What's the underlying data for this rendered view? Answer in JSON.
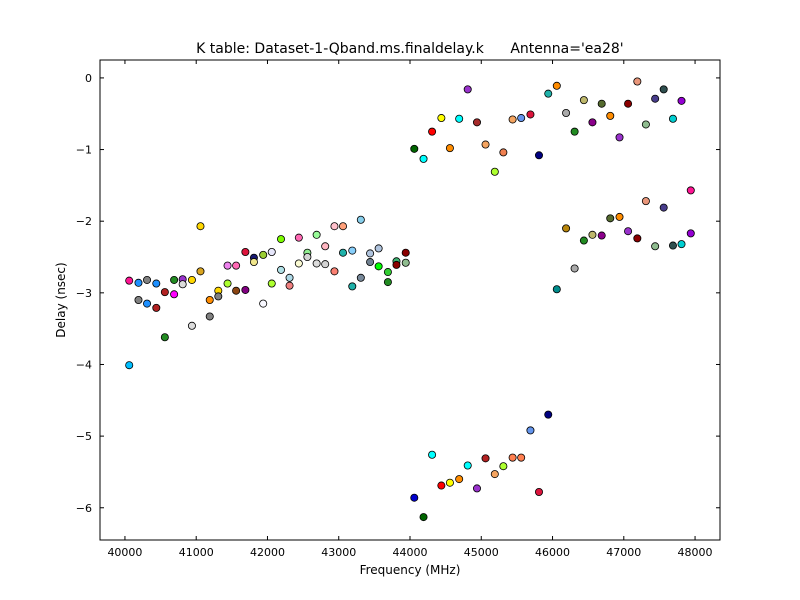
{
  "chart_data": {
    "type": "scatter",
    "title": "K table: Dataset-1-Qband.ms.finaldelay.k",
    "subtitle": "Antenna='ea28'",
    "xlabel": "Frequency (MHz)",
    "ylabel": "Delay (nsec)",
    "xlim": [
      39650,
      48350
    ],
    "ylim": [
      -6.45,
      0.25
    ],
    "xticks": [
      40000,
      41000,
      42000,
      43000,
      44000,
      45000,
      46000,
      47000,
      48000
    ],
    "yticks": [
      0,
      -1,
      -2,
      -3,
      -4,
      -5,
      -6
    ],
    "xtick_labels": [
      "40000",
      "41000",
      "42000",
      "43000",
      "44000",
      "45000",
      "46000",
      "47000",
      "48000"
    ],
    "ytick_labels": [
      "0",
      "−1",
      "−2",
      "−3",
      "−4",
      "−5",
      "−6"
    ],
    "grid": false,
    "legend": "none",
    "points": [
      {
        "x": 40060,
        "y": -2.83,
        "color": "#ff1493"
      },
      {
        "x": 40060,
        "y": -4.01,
        "color": "#00bfff"
      },
      {
        "x": 40190,
        "y": -2.86,
        "color": "#1e90ff"
      },
      {
        "x": 40190,
        "y": -3.1,
        "color": "#808080"
      },
      {
        "x": 40310,
        "y": -2.82,
        "color": "#808080"
      },
      {
        "x": 40310,
        "y": -3.15,
        "color": "#1e90ff"
      },
      {
        "x": 40440,
        "y": -2.87,
        "color": "#1e90ff"
      },
      {
        "x": 40440,
        "y": -3.21,
        "color": "#b22222"
      },
      {
        "x": 40560,
        "y": -2.99,
        "color": "#b22222"
      },
      {
        "x": 40560,
        "y": -3.62,
        "color": "#228b22"
      },
      {
        "x": 40690,
        "y": -2.82,
        "color": "#228b22"
      },
      {
        "x": 40690,
        "y": -3.02,
        "color": "#ff00ff"
      },
      {
        "x": 40810,
        "y": -2.81,
        "color": "#9932cc"
      },
      {
        "x": 40810,
        "y": -2.88,
        "color": "#dcdcdc"
      },
      {
        "x": 40940,
        "y": -2.82,
        "color": "#ffd700"
      },
      {
        "x": 40940,
        "y": -3.46,
        "color": "#dcdcdc"
      },
      {
        "x": 41060,
        "y": -2.07,
        "color": "#ffd700"
      },
      {
        "x": 41060,
        "y": -2.7,
        "color": "#daa520"
      },
      {
        "x": 41190,
        "y": -3.1,
        "color": "#ff8c00"
      },
      {
        "x": 41190,
        "y": -3.33,
        "color": "#808080"
      },
      {
        "x": 41310,
        "y": -2.97,
        "color": "#ffd700"
      },
      {
        "x": 41310,
        "y": -3.05,
        "color": "#808080"
      },
      {
        "x": 41440,
        "y": -2.62,
        "color": "#ee82ee"
      },
      {
        "x": 41440,
        "y": -2.87,
        "color": "#adff2f"
      },
      {
        "x": 41560,
        "y": -2.62,
        "color": "#ff69b4"
      },
      {
        "x": 41560,
        "y": -2.97,
        "color": "#8b4513"
      },
      {
        "x": 41690,
        "y": -2.43,
        "color": "#dc143c"
      },
      {
        "x": 41690,
        "y": -2.96,
        "color": "#800080"
      },
      {
        "x": 41810,
        "y": -2.51,
        "color": "#191970"
      },
      {
        "x": 41810,
        "y": -2.57,
        "color": "#f0e68c"
      },
      {
        "x": 41940,
        "y": -2.47,
        "color": "#9acd32"
      },
      {
        "x": 41940,
        "y": -3.15,
        "color": "#f8f8ff"
      },
      {
        "x": 42060,
        "y": -2.43,
        "color": "#e6e6fa"
      },
      {
        "x": 42060,
        "y": -2.87,
        "color": "#adff2f"
      },
      {
        "x": 42190,
        "y": -2.25,
        "color": "#7cfc00"
      },
      {
        "x": 42190,
        "y": -2.68,
        "color": "#b0e0e6"
      },
      {
        "x": 42310,
        "y": -2.79,
        "color": "#add8e6"
      },
      {
        "x": 42310,
        "y": -2.9,
        "color": "#f08080"
      },
      {
        "x": 42440,
        "y": -2.23,
        "color": "#ff69b4"
      },
      {
        "x": 42440,
        "y": -2.59,
        "color": "#fafad2"
      },
      {
        "x": 42560,
        "y": -2.44,
        "color": "#90ee90"
      },
      {
        "x": 42560,
        "y": -2.5,
        "color": "#d3d3d3"
      },
      {
        "x": 42690,
        "y": -2.19,
        "color": "#98fb98"
      },
      {
        "x": 42690,
        "y": -2.59,
        "color": "#dcdcdc"
      },
      {
        "x": 42810,
        "y": -2.35,
        "color": "#ffb6c1"
      },
      {
        "x": 42810,
        "y": -2.6,
        "color": "#d3d3d3"
      },
      {
        "x": 42940,
        "y": -2.07,
        "color": "#ffc0cb"
      },
      {
        "x": 42940,
        "y": -2.7,
        "color": "#fa8072"
      },
      {
        "x": 43060,
        "y": -2.07,
        "color": "#ffa07a"
      },
      {
        "x": 43060,
        "y": -2.44,
        "color": "#20b2aa"
      },
      {
        "x": 43190,
        "y": -2.41,
        "color": "#87cefa"
      },
      {
        "x": 43190,
        "y": -2.91,
        "color": "#20b2aa"
      },
      {
        "x": 43310,
        "y": -1.98,
        "color": "#87ceeb"
      },
      {
        "x": 43310,
        "y": -2.79,
        "color": "#778899"
      },
      {
        "x": 43440,
        "y": -2.45,
        "color": "#b0c4de"
      },
      {
        "x": 43440,
        "y": -2.57,
        "color": "#708090"
      },
      {
        "x": 43560,
        "y": -2.38,
        "color": "#b0c4de"
      },
      {
        "x": 43560,
        "y": -2.63,
        "color": "#00ff00"
      },
      {
        "x": 43690,
        "y": -2.71,
        "color": "#32cd32"
      },
      {
        "x": 43690,
        "y": -2.85,
        "color": "#228b22"
      },
      {
        "x": 43810,
        "y": -2.56,
        "color": "#3cb371"
      },
      {
        "x": 43810,
        "y": -2.61,
        "color": "#8b0000"
      },
      {
        "x": 43940,
        "y": -2.44,
        "color": "#8b0000"
      },
      {
        "x": 43940,
        "y": -2.58,
        "color": "#8fbc8f"
      },
      {
        "x": 44060,
        "y": -0.99,
        "color": "#006400"
      },
      {
        "x": 44060,
        "y": -5.86,
        "color": "#0000cd"
      },
      {
        "x": 44190,
        "y": -1.13,
        "color": "#00ffff"
      },
      {
        "x": 44190,
        "y": -6.13,
        "color": "#006400"
      },
      {
        "x": 44310,
        "y": -0.75,
        "color": "#ff0000"
      },
      {
        "x": 44310,
        "y": -5.26,
        "color": "#00ffff"
      },
      {
        "x": 44440,
        "y": -0.56,
        "color": "#ffff00"
      },
      {
        "x": 44440,
        "y": -5.69,
        "color": "#ff0000"
      },
      {
        "x": 44560,
        "y": -0.98,
        "color": "#ff8c00"
      },
      {
        "x": 44560,
        "y": -5.65,
        "color": "#ffff00"
      },
      {
        "x": 44690,
        "y": -0.57,
        "color": "#00ffff"
      },
      {
        "x": 44690,
        "y": -5.6,
        "color": "#ff8c00"
      },
      {
        "x": 44810,
        "y": -0.16,
        "color": "#9932cc"
      },
      {
        "x": 44810,
        "y": -5.41,
        "color": "#00ffff"
      },
      {
        "x": 44940,
        "y": -0.62,
        "color": "#a52a2a"
      },
      {
        "x": 44940,
        "y": -5.73,
        "color": "#9932cc"
      },
      {
        "x": 45060,
        "y": -0.93,
        "color": "#f4a460"
      },
      {
        "x": 45060,
        "y": -5.31,
        "color": "#b22222"
      },
      {
        "x": 45190,
        "y": -1.31,
        "color": "#adff2f"
      },
      {
        "x": 45190,
        "y": -5.53,
        "color": "#f4a460"
      },
      {
        "x": 45310,
        "y": -1.04,
        "color": "#f08050"
      },
      {
        "x": 45310,
        "y": -5.42,
        "color": "#adff2f"
      },
      {
        "x": 45440,
        "y": -0.58,
        "color": "#f4a460"
      },
      {
        "x": 45440,
        "y": -5.3,
        "color": "#ff7f50"
      },
      {
        "x": 45560,
        "y": -0.56,
        "color": "#6495ed"
      },
      {
        "x": 45560,
        "y": -5.3,
        "color": "#ff7f50"
      },
      {
        "x": 45690,
        "y": -0.51,
        "color": "#dc143c"
      },
      {
        "x": 45690,
        "y": -4.92,
        "color": "#6495ed"
      },
      {
        "x": 45810,
        "y": -1.08,
        "color": "#000080"
      },
      {
        "x": 45810,
        "y": -5.78,
        "color": "#dc143c"
      },
      {
        "x": 45940,
        "y": -0.22,
        "color": "#20b2aa"
      },
      {
        "x": 45940,
        "y": -4.7,
        "color": "#000080"
      },
      {
        "x": 46060,
        "y": -0.11,
        "color": "#ff8c00"
      },
      {
        "x": 46060,
        "y": -2.95,
        "color": "#008b8b"
      },
      {
        "x": 46190,
        "y": -0.49,
        "color": "#a9a9a9"
      },
      {
        "x": 46190,
        "y": -2.1,
        "color": "#b8860b"
      },
      {
        "x": 46310,
        "y": -0.75,
        "color": "#228b22"
      },
      {
        "x": 46310,
        "y": -2.66,
        "color": "#a9a9a9"
      },
      {
        "x": 46440,
        "y": -0.31,
        "color": "#bdb76b"
      },
      {
        "x": 46440,
        "y": -2.27,
        "color": "#228b22"
      },
      {
        "x": 46560,
        "y": -0.62,
        "color": "#8b008b"
      },
      {
        "x": 46560,
        "y": -2.19,
        "color": "#bdb76b"
      },
      {
        "x": 46690,
        "y": -0.36,
        "color": "#556b2f"
      },
      {
        "x": 46690,
        "y": -2.2,
        "color": "#8b008b"
      },
      {
        "x": 46810,
        "y": -0.53,
        "color": "#ff8c00"
      },
      {
        "x": 46810,
        "y": -1.96,
        "color": "#556b2f"
      },
      {
        "x": 46940,
        "y": -0.83,
        "color": "#9932cc"
      },
      {
        "x": 46940,
        "y": -1.94,
        "color": "#ff8c00"
      },
      {
        "x": 47060,
        "y": -0.36,
        "color": "#8b0000"
      },
      {
        "x": 47060,
        "y": -2.14,
        "color": "#9932cc"
      },
      {
        "x": 47190,
        "y": -0.05,
        "color": "#e9967a"
      },
      {
        "x": 47190,
        "y": -2.24,
        "color": "#8b0000"
      },
      {
        "x": 47310,
        "y": -0.65,
        "color": "#8fbc8f"
      },
      {
        "x": 47310,
        "y": -1.72,
        "color": "#e9967a"
      },
      {
        "x": 47440,
        "y": -0.29,
        "color": "#483d8b"
      },
      {
        "x": 47440,
        "y": -2.35,
        "color": "#8fbc8f"
      },
      {
        "x": 47560,
        "y": -0.16,
        "color": "#2f4f4f"
      },
      {
        "x": 47560,
        "y": -1.81,
        "color": "#483d8b"
      },
      {
        "x": 47690,
        "y": -0.57,
        "color": "#00ced1"
      },
      {
        "x": 47690,
        "y": -2.34,
        "color": "#2f4f4f"
      },
      {
        "x": 47810,
        "y": -0.32,
        "color": "#9400d3"
      },
      {
        "x": 47810,
        "y": -2.32,
        "color": "#00ced1"
      },
      {
        "x": 47940,
        "y": -1.57,
        "color": "#ff1493"
      },
      {
        "x": 47940,
        "y": -2.17,
        "color": "#9400d3"
      }
    ]
  }
}
